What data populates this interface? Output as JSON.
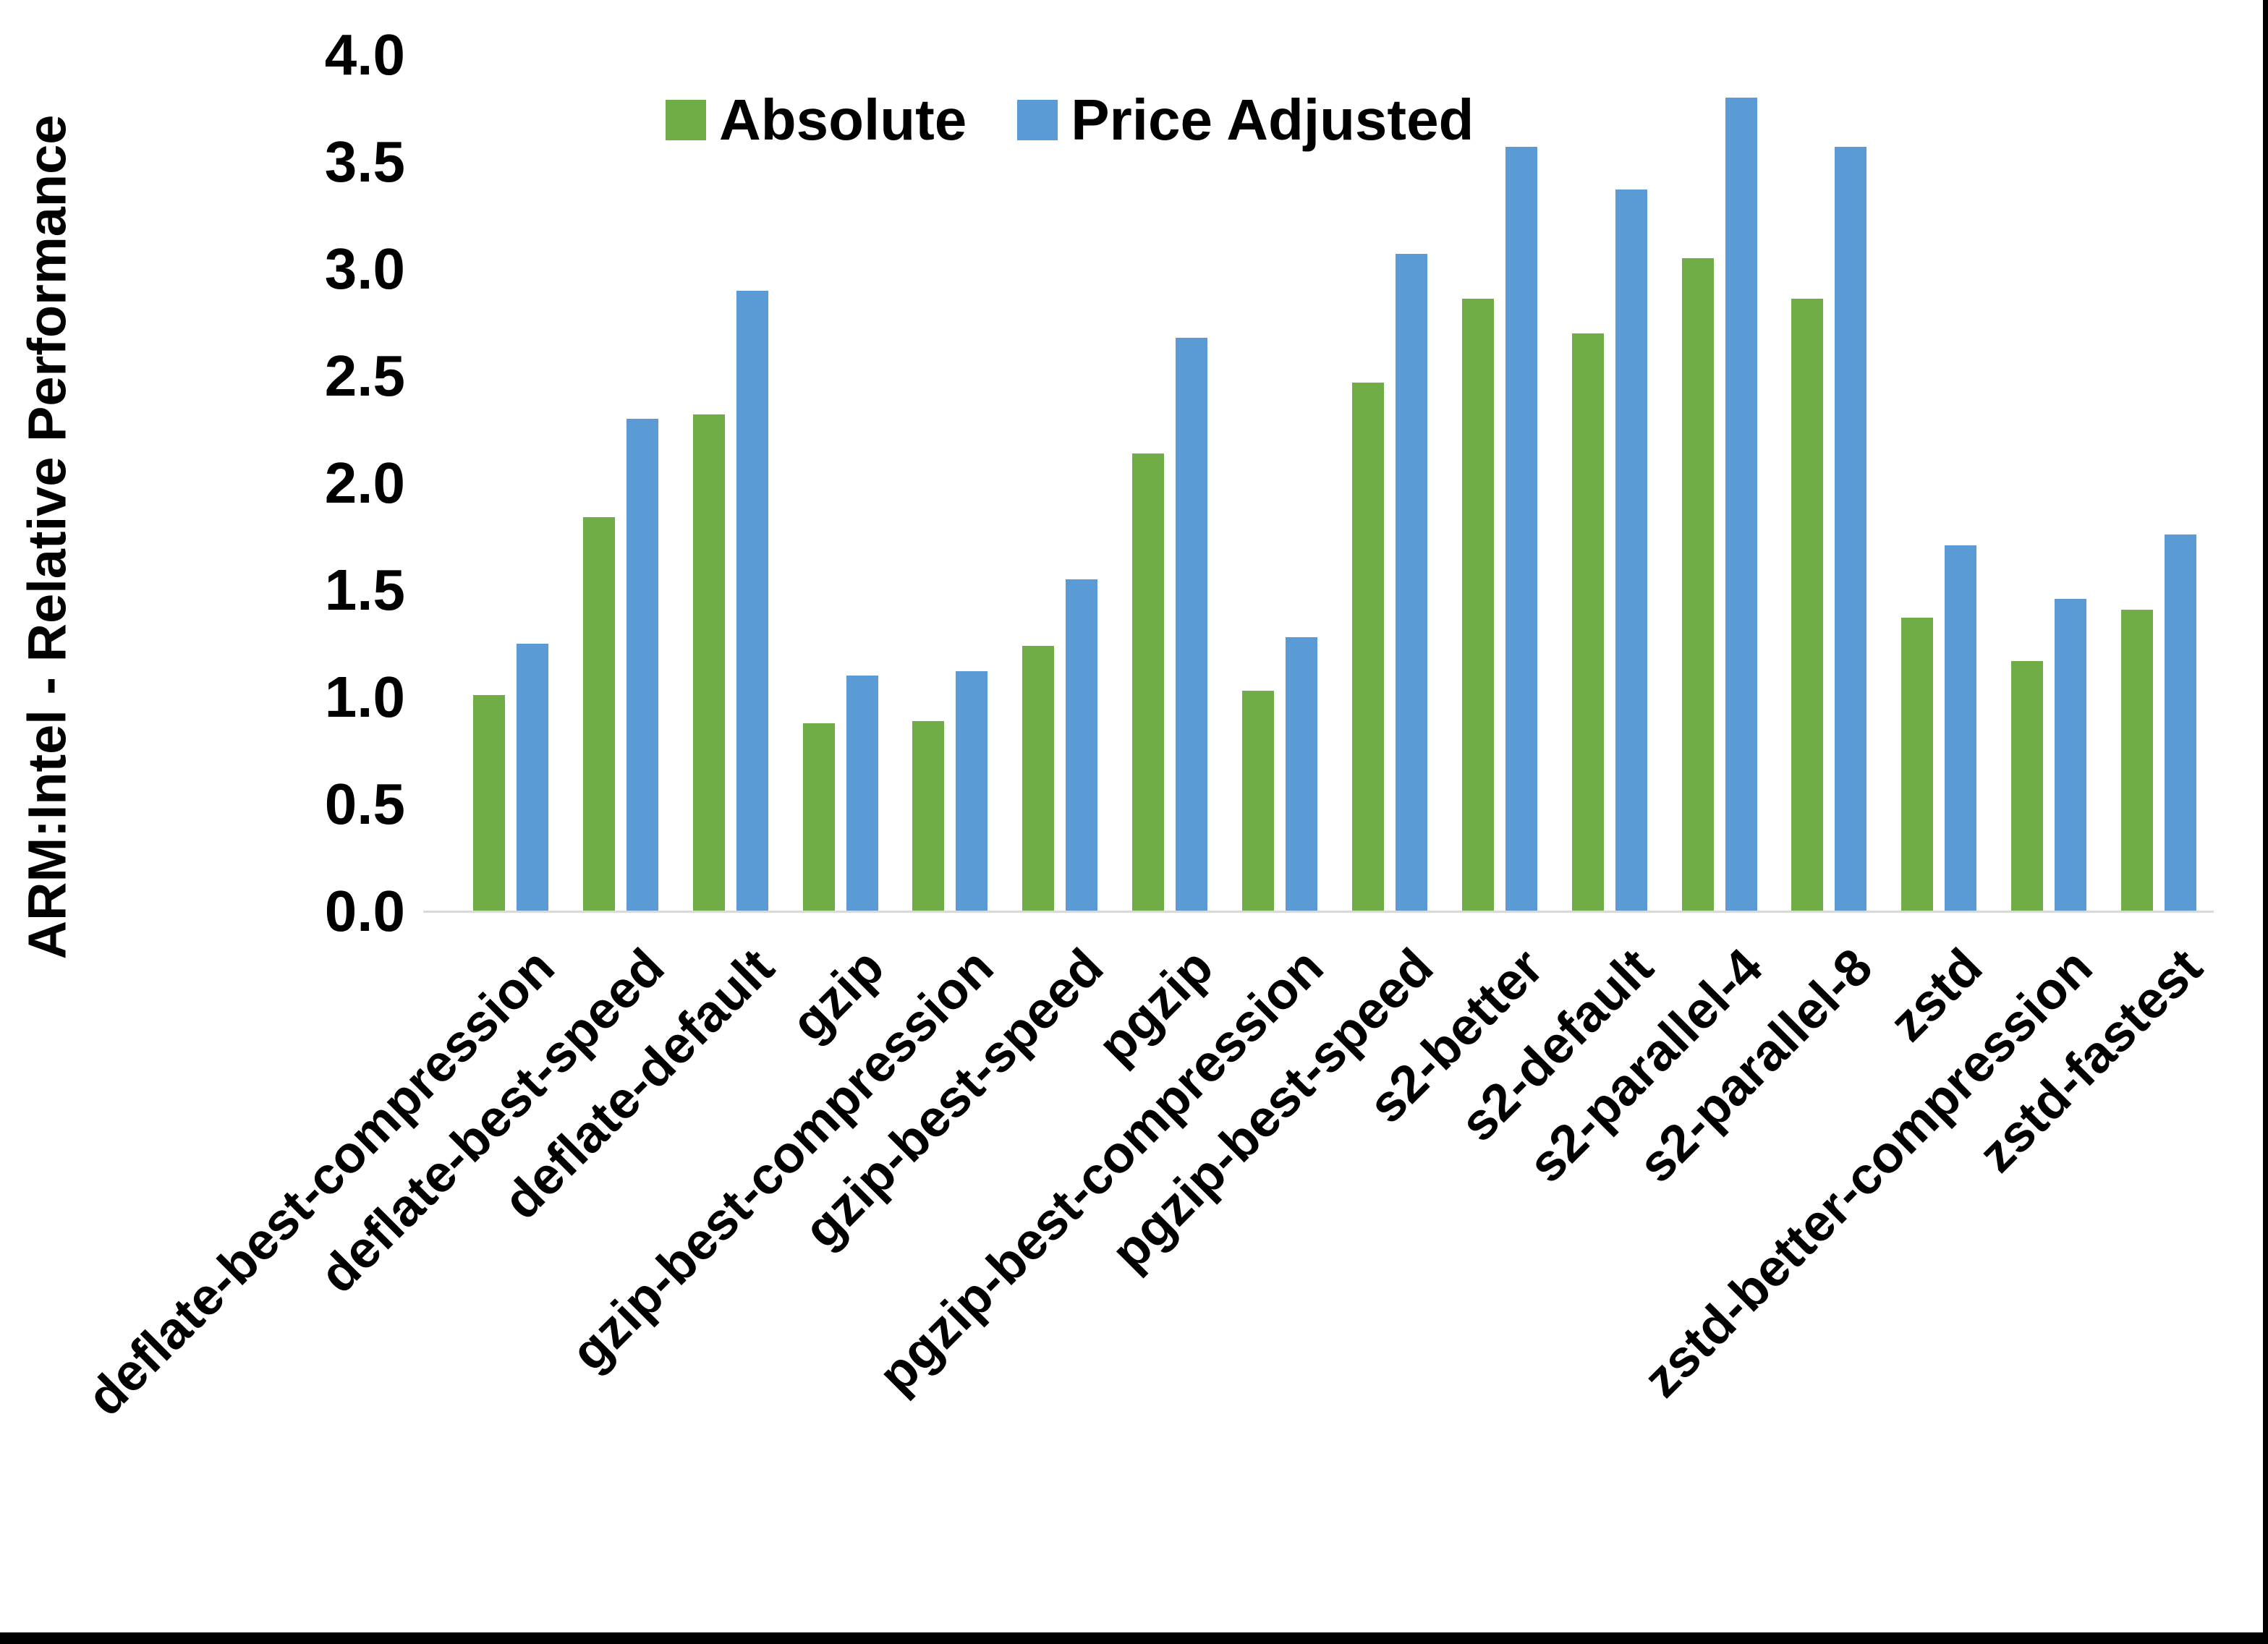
{
  "chart_data": {
    "type": "bar",
    "title": "",
    "ylabel": "ARM:Intel - Relative Performance",
    "xlabel": "",
    "ylim": [
      0.0,
      4.0
    ],
    "ytick_step": 0.5,
    "yticks": [
      "0.0",
      "0.5",
      "1.0",
      "1.5",
      "2.0",
      "2.5",
      "3.0",
      "3.5",
      "4.0"
    ],
    "grid": false,
    "legend_position": "top-center",
    "categories": [
      "deflate-best-compression",
      "deflate-best-speed",
      "deflate-default",
      "gzip",
      "gzip-best-compression",
      "gzip-best-speed",
      "pgzip",
      "pgzip-best-compression",
      "pgzip-best-speed",
      "s2-better",
      "s2-default",
      "s2-parallel-4",
      "s2-parallel-8",
      "zstd",
      "zstd-better-compression",
      "zstd-fastest"
    ],
    "series": [
      {
        "name": "Absolute",
        "color": "#70AD47",
        "values": [
          1.01,
          1.84,
          2.32,
          0.88,
          0.89,
          1.24,
          2.14,
          1.03,
          2.47,
          2.86,
          2.7,
          3.05,
          2.86,
          1.37,
          1.17,
          1.41
        ]
      },
      {
        "name": "Price Adjusted",
        "color": "#5B9BD5",
        "values": [
          1.25,
          2.3,
          2.9,
          1.1,
          1.12,
          1.55,
          2.68,
          1.28,
          3.07,
          3.57,
          3.37,
          3.8,
          3.57,
          1.71,
          1.46,
          1.76
        ]
      }
    ],
    "colors": {
      "axis_line": "#d9d9d9",
      "text": "#000000",
      "background": "#ffffff",
      "border": "#000000"
    }
  }
}
